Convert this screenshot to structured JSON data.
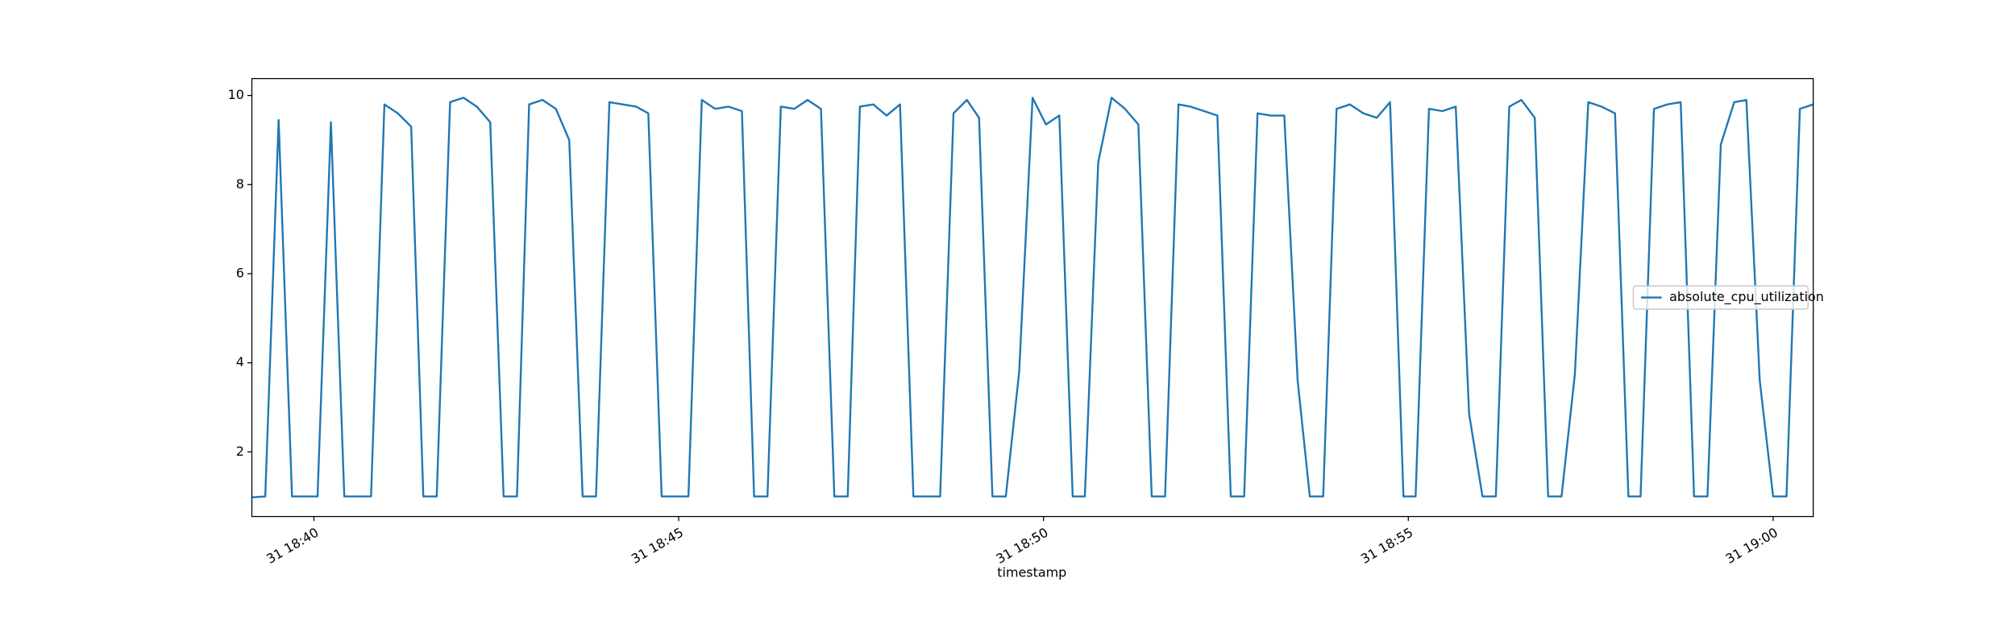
{
  "chart_data": {
    "type": "line",
    "xlabel": "timestamp",
    "x": [
      "18:39:09",
      "18:39:20",
      "18:39:31",
      "18:39:42",
      "18:39:53",
      "18:40:03",
      "18:40:14",
      "18:40:25",
      "18:40:36",
      "18:40:47",
      "18:40:58",
      "18:41:09",
      "18:41:20",
      "18:41:30",
      "18:41:41",
      "18:41:52",
      "18:42:03",
      "18:42:14",
      "18:42:25",
      "18:42:36",
      "18:42:47",
      "18:42:57",
      "18:43:08",
      "18:43:19",
      "18:43:30",
      "18:43:41",
      "18:43:52",
      "18:44:03",
      "18:44:14",
      "18:44:25",
      "18:44:35",
      "18:44:46",
      "18:44:57",
      "18:45:08",
      "18:45:19",
      "18:45:30",
      "18:45:41",
      "18:45:52",
      "18:46:02",
      "18:46:13",
      "18:46:24",
      "18:46:35",
      "18:46:46",
      "18:46:57",
      "18:47:08",
      "18:47:19",
      "18:47:29",
      "18:47:40",
      "18:47:51",
      "18:48:02",
      "18:48:13",
      "18:48:24",
      "18:48:35",
      "18:48:46",
      "18:48:57",
      "18:49:07",
      "18:49:18",
      "18:49:29",
      "18:49:40",
      "18:49:51",
      "18:50:02",
      "18:50:13",
      "18:50:24",
      "18:50:34",
      "18:50:45",
      "18:50:56",
      "18:51:07",
      "18:51:18",
      "18:51:29",
      "18:51:40",
      "18:51:51",
      "18:52:01",
      "18:52:12",
      "18:52:23",
      "18:52:34",
      "18:52:45",
      "18:52:56",
      "18:53:07",
      "18:53:18",
      "18:53:29",
      "18:53:39",
      "18:53:50",
      "18:54:01",
      "18:54:12",
      "18:54:23",
      "18:54:34",
      "18:54:45",
      "18:54:56",
      "18:55:06",
      "18:55:17",
      "18:55:28",
      "18:55:39",
      "18:55:50",
      "18:56:01",
      "18:56:12",
      "18:56:23",
      "18:56:33",
      "18:56:44",
      "18:56:55",
      "18:57:06",
      "18:57:17",
      "18:57:28",
      "18:57:39",
      "18:57:50",
      "18:58:01",
      "18:58:11",
      "18:58:22",
      "18:58:33",
      "18:58:44",
      "18:58:55",
      "18:59:06",
      "18:59:17",
      "18:59:28",
      "18:59:38",
      "18:59:49",
      "19:00:00",
      "19:00:11",
      "19:00:22",
      "19:00:33"
    ],
    "series": [
      {
        "name": "absolute_cpu_utilization",
        "color": "#1f77b4",
        "values": [
          0.98,
          1.0,
          9.45,
          1.0,
          1.0,
          1.0,
          9.4,
          1.0,
          1.0,
          1.0,
          9.8,
          9.6,
          9.3,
          1.0,
          1.0,
          9.85,
          9.95,
          9.75,
          9.4,
          1.0,
          1.0,
          9.8,
          9.9,
          9.7,
          9.0,
          1.0,
          1.0,
          9.85,
          9.8,
          9.75,
          9.6,
          1.0,
          1.0,
          1.0,
          9.9,
          9.7,
          9.75,
          9.65,
          1.0,
          1.0,
          9.75,
          9.7,
          9.9,
          9.7,
          1.0,
          1.0,
          9.75,
          9.8,
          9.55,
          9.8,
          1.0,
          1.0,
          1.0,
          9.6,
          9.9,
          9.5,
          1.0,
          1.0,
          3.8,
          9.95,
          9.35,
          9.55,
          1.0,
          1.0,
          8.5,
          9.95,
          9.7,
          9.35,
          1.0,
          1.0,
          9.8,
          9.75,
          9.65,
          9.55,
          1.0,
          1.0,
          9.6,
          9.55,
          9.55,
          3.6,
          1.0,
          1.0,
          9.7,
          9.8,
          9.6,
          9.5,
          9.85,
          1.0,
          1.0,
          9.7,
          9.65,
          9.75,
          2.85,
          1.0,
          1.0,
          9.75,
          9.9,
          9.5,
          1.0,
          1.0,
          3.75,
          9.85,
          9.75,
          9.6,
          1.0,
          1.0,
          9.7,
          9.8,
          9.85,
          1.0,
          1.0,
          8.9,
          9.85,
          9.9,
          3.6,
          1.0,
          1.0,
          9.7,
          9.8
        ]
      }
    ],
    "xlim": [
      "18:39:09",
      "19:00:33"
    ],
    "xticks": [
      {
        "value": "18:40:00",
        "label": "31 18:40"
      },
      {
        "value": "18:45:00",
        "label": "31 18:45"
      },
      {
        "value": "18:50:00",
        "label": "31 18:50"
      },
      {
        "value": "18:55:00",
        "label": "31 18:55"
      },
      {
        "value": "19:00:00",
        "label": "31 19:00"
      }
    ],
    "ylim": [
      0.55,
      10.38
    ],
    "yticks": [
      2,
      4,
      6,
      8,
      10
    ],
    "grid": false,
    "legend": "center right"
  }
}
